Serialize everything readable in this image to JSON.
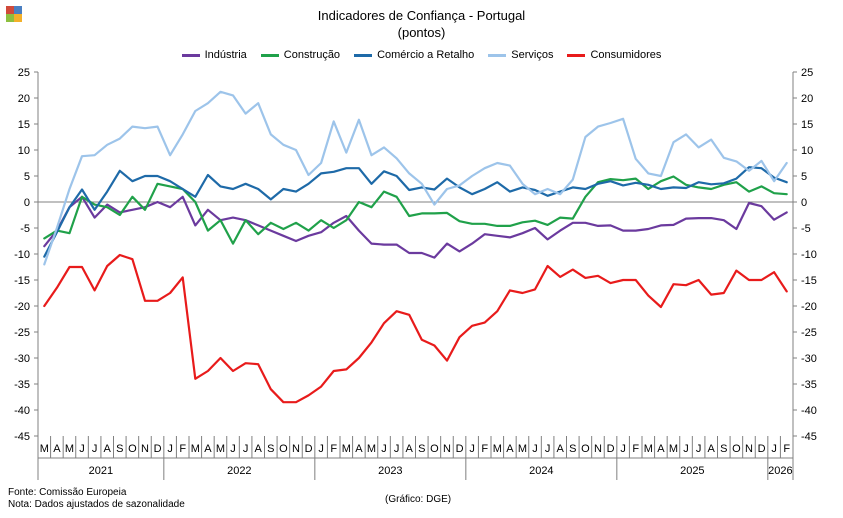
{
  "colors": {
    "background": "#ffffff",
    "logo": [
      "#d04a3a",
      "#4a7fc1",
      "#8dbf3f",
      "#f3b02a"
    ]
  },
  "chart_data": {
    "type": "line",
    "title": "Indicadores de Confiança - Portugal",
    "subtitle": "(pontos)",
    "ylim": [
      -45,
      25
    ],
    "yticks": [
      25,
      20,
      15,
      10,
      5,
      0,
      -5,
      -10,
      -15,
      -20,
      -25,
      -30,
      -35,
      -40,
      -45
    ],
    "ytick_step": 5,
    "legend_position": "top-center",
    "grid": false,
    "x": [
      "M",
      "A",
      "M",
      "J",
      "J",
      "A",
      "S",
      "O",
      "N",
      "D",
      "J",
      "F",
      "M",
      "A",
      "M",
      "J",
      "J",
      "A",
      "S",
      "O",
      "N",
      "D",
      "J",
      "F",
      "M",
      "A",
      "M",
      "J",
      "J",
      "A",
      "S",
      "O",
      "N",
      "D",
      "J",
      "F",
      "M",
      "A",
      "M",
      "J",
      "J",
      "A",
      "S",
      "O",
      "N",
      "D",
      "J",
      "F",
      "M",
      "A",
      "M",
      "J",
      "J",
      "A",
      "S",
      "O",
      "N",
      "D",
      "J",
      "F"
    ],
    "years": [
      {
        "label": "2021",
        "start": 0,
        "end": 9
      },
      {
        "label": "2022",
        "start": 10,
        "end": 21
      },
      {
        "label": "2023",
        "start": 22,
        "end": 33
      },
      {
        "label": "2024",
        "start": 34,
        "end": 45
      },
      {
        "label": "2025",
        "start": 46,
        "end": 57
      },
      {
        "label": "2026",
        "start": 58,
        "end": 59
      }
    ],
    "series": [
      {
        "name": "Indústria",
        "color": "#6b3a9e",
        "values": [
          -8.5,
          -5.5,
          -1,
          1,
          -3,
          -0.5,
          -2,
          -1.5,
          -1,
          0,
          -1,
          1,
          -4.5,
          -1.5,
          -3.5,
          -3,
          -3.5,
          -4.5,
          -5.5,
          -6.5,
          -7.5,
          -6.5,
          -5.8,
          -4,
          -2.7,
          -5.5,
          -8,
          -8.2,
          -8.2,
          -9.8,
          -9.8,
          -10.7,
          -8,
          -9.5,
          -8,
          -6.2,
          -6.5,
          -6.8,
          -6,
          -5,
          -7.2,
          -5.5,
          -4,
          -4,
          -4.6,
          -4.5,
          -5.5,
          -5.5,
          -5.2,
          -4.5,
          -4.4,
          -3.2,
          -3.1,
          -3.1,
          -3.5,
          -5.2,
          -0.2,
          -0.8,
          -3.4,
          -2
        ]
      },
      {
        "name": "Construção",
        "color": "#20a14a",
        "values": [
          -7,
          -5.5,
          -6,
          1,
          -0.5,
          -1,
          -2.5,
          1,
          -1.5,
          3.5,
          3,
          2.5,
          0,
          -5.5,
          -3.5,
          -8,
          -3.5,
          -6.2,
          -4,
          -5.2,
          -4,
          -5.5,
          -3.5,
          -5,
          -3.5,
          0,
          -1,
          2,
          1,
          -2.7,
          -2.2,
          -2.2,
          -2.1,
          -3.7,
          -4.2,
          -4.2,
          -4.6,
          -4.6,
          -3.9,
          -3.6,
          -4.4,
          -3,
          -3.2,
          1,
          3.8,
          4.4,
          4.2,
          4.5,
          2.5,
          4,
          4.9,
          3.3,
          2.8,
          2.5,
          3.3,
          3.8,
          2,
          3,
          1.7,
          1.5
        ]
      },
      {
        "name": "Comércio a Retalho",
        "color": "#1e6aa8",
        "values": [
          -10.5,
          -5.8,
          -1,
          2.4,
          -1.5,
          2,
          6,
          4,
          5,
          5,
          4,
          2.5,
          1,
          5.2,
          3,
          2.5,
          3.5,
          2.5,
          0.5,
          2.5,
          2,
          3.5,
          5.5,
          5.8,
          6.5,
          6.5,
          3.5,
          5.9,
          5,
          2.3,
          2.8,
          2.4,
          4.5,
          2.8,
          1.5,
          2.5,
          3.8,
          2,
          2.8,
          2.3,
          1.2,
          2,
          2.8,
          2.5,
          3.5,
          4,
          3.2,
          3.7,
          3.3,
          2.5,
          2.8,
          2.7,
          3.8,
          3.4,
          3.6,
          4.5,
          6.7,
          6.5,
          4.7,
          3.8
        ]
      },
      {
        "name": "Serviços",
        "color": "#9dc4ea",
        "values": [
          -12,
          -5,
          2.5,
          8.8,
          9,
          11,
          12.2,
          14.5,
          14.2,
          14.5,
          9,
          13,
          17.5,
          19,
          21.2,
          20.5,
          17,
          19,
          13,
          11,
          10,
          5.2,
          7.5,
          15.5,
          9.5,
          15.8,
          9,
          10.5,
          8.4,
          5.5,
          3.5,
          -0.5,
          2.5,
          3.2,
          5,
          6.5,
          7.5,
          7,
          3.5,
          1.5,
          2.5,
          1.5,
          4.3,
          12.5,
          14.5,
          15.2,
          16,
          8.3,
          5.5,
          5,
          11.5,
          13,
          10.5,
          12,
          8.5,
          7.8,
          6,
          7.9,
          4,
          7.5
        ]
      },
      {
        "name": "Consumidores",
        "color": "#e81b1b",
        "values": [
          -20,
          -16.5,
          -12.5,
          -12.5,
          -17,
          -12.3,
          -10.2,
          -11,
          -19,
          -19,
          -17.5,
          -14.5,
          -34,
          -32.5,
          -30,
          -32.5,
          -31,
          -31.2,
          -36,
          -38.5,
          -38.5,
          -37.2,
          -35.5,
          -32.5,
          -32.2,
          -30,
          -27,
          -23.3,
          -21,
          -21.7,
          -26.5,
          -27.6,
          -30.5,
          -26,
          -23.8,
          -23.2,
          -21,
          -17,
          -17.5,
          -16.8,
          -12.3,
          -14.4,
          -13,
          -14.6,
          -14.2,
          -15.6,
          -15,
          -15,
          -18,
          -20.2,
          -15.8,
          -16,
          -15,
          -17.8,
          -17.5,
          -13.2,
          -15,
          -15,
          -13.5,
          -17.2
        ]
      }
    ]
  },
  "footer": {
    "source": "Fonte: Comissão Europeia",
    "note": "Nota: Dados ajustados de sazonalidade",
    "credit": "(Gráfico: DGE)"
  }
}
